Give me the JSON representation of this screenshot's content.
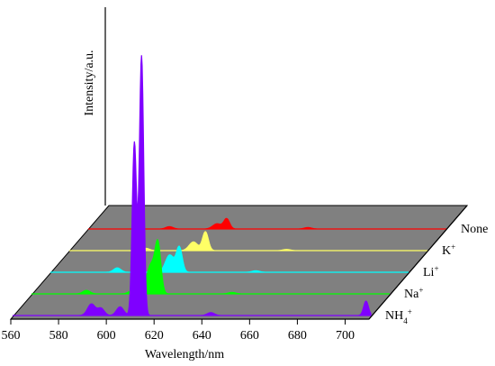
{
  "chart_data": {
    "type": "area",
    "xlabel": "Wavelength/nm",
    "ylabel": "Intensity/a.u.",
    "xlim": [
      560,
      710
    ],
    "xticks": [
      560,
      580,
      600,
      620,
      640,
      660,
      680,
      700
    ],
    "floor_color": "#808080",
    "series": [
      {
        "name": "None",
        "color": "#ff0000",
        "peaks": [
          [
            594,
            0.8,
            1.5
          ],
          [
            614,
            1.8,
            1.8
          ],
          [
            618,
            3.5,
            1.2
          ],
          [
            652,
            0.5,
            1.5
          ]
        ]
      },
      {
        "name": "K+",
        "color": "#ffff66",
        "peaks": [
          [
            592,
            0.8,
            1.5
          ],
          [
            612,
            3.0,
            1.8
          ],
          [
            617,
            6.5,
            1.2
          ],
          [
            651,
            0.4,
            1.5
          ]
        ]
      },
      {
        "name": "Li+",
        "color": "#00ffff",
        "peaks": [
          [
            588,
            1.5,
            1.5
          ],
          [
            610,
            6.0,
            1.8
          ],
          [
            614,
            8.5,
            1.2
          ],
          [
            646,
            0.5,
            1.5
          ]
        ]
      },
      {
        "name": "Na+",
        "color": "#00ff00",
        "peaks": [
          [
            583,
            1.2,
            1.5
          ],
          [
            602,
            1.0,
            1.5
          ],
          [
            610,
            10.0,
            1.8
          ],
          [
            613,
            16.0,
            1.2
          ],
          [
            644,
            0.5,
            1.5
          ]
        ]
      },
      {
        "name": "NH4+",
        "color": "#7f00ff",
        "peaks": [
          [
            593,
            4.0,
            1.6
          ],
          [
            597,
            2.5,
            1.4
          ],
          [
            605,
            3.0,
            1.5
          ],
          [
            611,
            60.0,
            0.9
          ],
          [
            614,
            90.0,
            0.9
          ],
          [
            643,
            1.0,
            1.5
          ],
          [
            708,
            5.0,
            1.0
          ]
        ]
      }
    ]
  }
}
